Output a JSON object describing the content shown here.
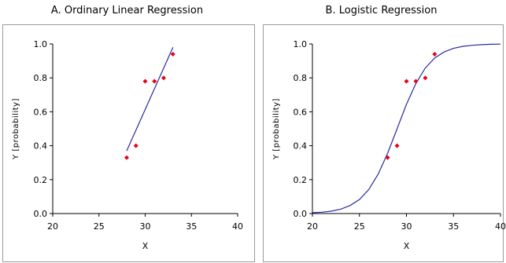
{
  "chart_data": [
    {
      "type": "line",
      "title": "A. Ordinary Linear Regression",
      "xlabel": "X",
      "ylabel": "Y [probability]",
      "xlim": [
        20,
        40
      ],
      "ylim": [
        0,
        1.0
      ],
      "xticks": [
        "20",
        "25",
        "30",
        "35",
        "40"
      ],
      "yticks": [
        "0.0",
        "0.2",
        "0.4",
        "0.6",
        "0.8",
        "1.0"
      ],
      "grid": false,
      "series": [
        {
          "kind": "scatter",
          "color": "#e8001c",
          "x": [
            28,
            29,
            30,
            31,
            32,
            33
          ],
          "y": [
            0.33,
            0.4,
            0.78,
            0.78,
            0.8,
            0.94
          ]
        },
        {
          "kind": "line",
          "color": "#2a2aa0",
          "x": [
            28,
            33
          ],
          "y": [
            0.37,
            0.98
          ]
        }
      ]
    },
    {
      "type": "line",
      "title": "B. Logistic Regression",
      "xlabel": "X",
      "ylabel": "Y [probability]",
      "xlim": [
        20,
        40
      ],
      "ylim": [
        0,
        1.0
      ],
      "xticks": [
        "20",
        "25",
        "30",
        "35",
        "40"
      ],
      "yticks": [
        "0.0",
        "0.2",
        "0.4",
        "0.6",
        "0.8",
        "1.0"
      ],
      "grid": false,
      "series": [
        {
          "kind": "scatter",
          "color": "#e8001c",
          "x": [
            28,
            29,
            30,
            31,
            32,
            33
          ],
          "y": [
            0.33,
            0.4,
            0.78,
            0.78,
            0.8,
            0.94
          ]
        },
        {
          "kind": "line",
          "color": "#2a2aa0",
          "x": [
            20,
            21,
            22,
            23,
            24,
            25,
            26,
            27,
            28,
            29,
            30,
            31,
            32,
            33,
            34,
            35,
            36,
            37,
            38,
            39,
            40
          ],
          "y": [
            0.005,
            0.008,
            0.014,
            0.026,
            0.047,
            0.083,
            0.142,
            0.233,
            0.356,
            0.5,
            0.644,
            0.767,
            0.858,
            0.917,
            0.953,
            0.974,
            0.986,
            0.992,
            0.996,
            0.998,
            0.999
          ]
        }
      ]
    }
  ]
}
